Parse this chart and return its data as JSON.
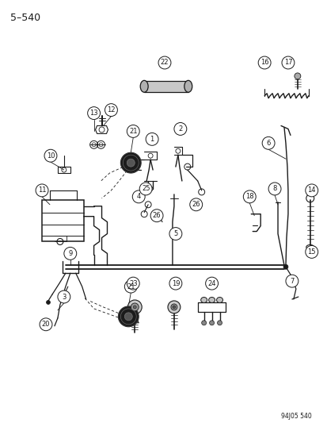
{
  "title": "5–540",
  "watermark": "94J05 540",
  "bg": "#ffffff",
  "lc": "#1a1a1a",
  "figsize": [
    4.14,
    5.33
  ],
  "dpi": 100
}
